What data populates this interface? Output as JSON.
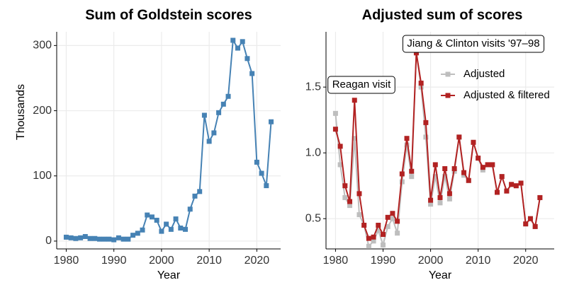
{
  "chart_data": [
    {
      "type": "line",
      "title": "Sum of Goldstein scores",
      "x_label": "Year",
      "y_label": "Thousands",
      "x": [
        1980,
        1981,
        1982,
        1983,
        1984,
        1985,
        1986,
        1987,
        1988,
        1989,
        1990,
        1991,
        1992,
        1993,
        1994,
        1995,
        1996,
        1997,
        1998,
        1999,
        2000,
        2001,
        2002,
        2003,
        2004,
        2005,
        2006,
        2007,
        2008,
        2009,
        2010,
        2011,
        2012,
        2013,
        2014,
        2015,
        2016,
        2017,
        2018,
        2019,
        2020,
        2021,
        2022,
        2023
      ],
      "series": [
        {
          "color": "#4682b4",
          "values": [
            6,
            5,
            4,
            5,
            7,
            4,
            4,
            3,
            3,
            3,
            2,
            5,
            3,
            3,
            9,
            12,
            17,
            40,
            37,
            32,
            15,
            26,
            18,
            34,
            20,
            18,
            49,
            69,
            76,
            193,
            153,
            166,
            197,
            210,
            222,
            308,
            296,
            306,
            280,
            257,
            121,
            104,
            85,
            183
          ]
        }
      ],
      "xlim": [
        1978,
        2025
      ],
      "ylim": [
        -12,
        321
      ],
      "xticks": [
        1980,
        1990,
        2000,
        2010,
        2020
      ],
      "yticks": [
        0,
        100,
        200,
        300
      ],
      "grid": true
    },
    {
      "type": "line",
      "title": "Adjusted sum of scores",
      "x_label": "Year",
      "x": [
        1980,
        1981,
        1982,
        1983,
        1984,
        1985,
        1986,
        1987,
        1988,
        1989,
        1990,
        1991,
        1992,
        1993,
        1994,
        1995,
        1996,
        1997,
        1998,
        1999,
        2000,
        2001,
        2002,
        2003,
        2004,
        2005,
        2006,
        2007,
        2008,
        2009,
        2010,
        2011,
        2012,
        2013,
        2014,
        2015,
        2016,
        2017,
        2018,
        2019,
        2020,
        2021,
        2022,
        2023
      ],
      "series": [
        {
          "name": "Adjusted",
          "color": "#bebebe",
          "values": [
            1.3,
            0.91,
            0.66,
            0.6,
            1.11,
            0.53,
            0.45,
            0.29,
            0.33,
            0.41,
            0.3,
            0.44,
            0.5,
            0.39,
            0.78,
            1.06,
            0.82,
            1.76,
            1.5,
            1.12,
            0.61,
            0.82,
            0.62,
            0.82,
            0.65,
            0.86,
            1.12,
            0.83,
            0.79,
            1.08,
            0.96,
            0.87,
            0.91,
            0.91,
            0.7,
            0.82,
            0.71,
            0.76,
            0.75,
            0.77,
            0.46,
            0.5,
            0.44,
            0.66
          ]
        },
        {
          "name": "Adjusted & filtered",
          "color": "#b22222",
          "values": [
            1.18,
            1.05,
            0.75,
            0.63,
            1.4,
            0.69,
            0.45,
            0.35,
            0.36,
            0.45,
            0.38,
            0.51,
            0.54,
            0.48,
            0.84,
            1.11,
            0.86,
            1.76,
            1.53,
            1.23,
            0.64,
            0.91,
            0.66,
            0.88,
            0.69,
            0.88,
            1.12,
            0.85,
            0.79,
            1.08,
            0.96,
            0.89,
            0.91,
            0.91,
            0.7,
            0.82,
            0.71,
            0.76,
            0.75,
            0.77,
            0.46,
            0.5,
            0.44,
            0.66
          ]
        }
      ],
      "annotations": [
        "Reagan visit",
        "Jiang & Clinton visits '97–98"
      ],
      "xlim": [
        1978,
        2026
      ],
      "ylim": [
        0.27,
        1.92
      ],
      "xticks": [
        1980,
        1990,
        2000,
        2010,
        2020
      ],
      "yticks": [
        {
          "value": 0.5,
          "label": "0.5"
        },
        {
          "value": 1.0,
          "label": "1.0"
        },
        {
          "value": 1.5,
          "label": "1.5"
        }
      ],
      "grid": true,
      "legend": "upper right"
    }
  ]
}
